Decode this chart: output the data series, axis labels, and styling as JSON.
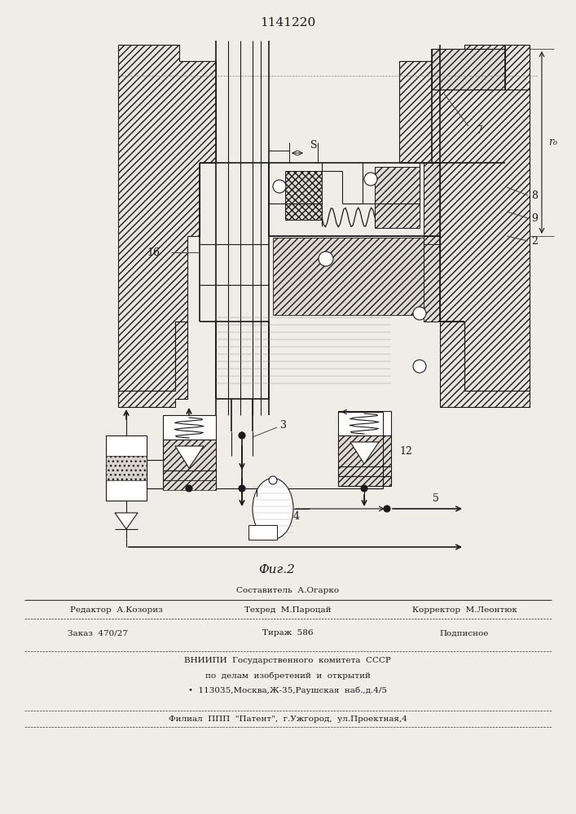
{
  "patent_number": "1141220",
  "fig_label": "Фиг.2",
  "background_color": "#f0ede8",
  "line_color": "#1a1a1a",
  "footer": {
    "line1_left": "Редактор  А.Козориз",
    "line1_center": "Составитель  А.Огарко",
    "line1_center2": "Техред  М.Пароцай",
    "line1_right": "Корректор  М.Леонтюк",
    "line2_left": "Заказ  470/27",
    "line2_center": "Тираж  586",
    "line2_right": "Подписное",
    "line3": "ВНИИПИ  Государственного  комитета  СССР",
    "line4": "по  делам  изобретений  и  открытий",
    "line5": "•  113035,Москва,Ж-35,Раушская  наб.,д.4/5",
    "line6": "Филиал  ППП  \"Патент\",  г.Ужгород,  ул.Проектная,4"
  }
}
